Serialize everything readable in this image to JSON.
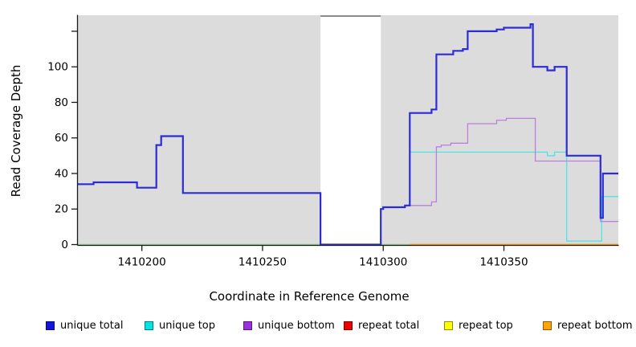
{
  "chart_data": {
    "type": "line",
    "subtype": "step-after",
    "title": "",
    "xlabel": "Coordinate in Reference Genome",
    "ylabel": "Read Coverage Depth",
    "x_axis": {
      "min": 1410173.5,
      "max": 1410397.4,
      "ticks": [
        1410200,
        1410250,
        1410300,
        1410350
      ],
      "tick_labels": [
        "1410200",
        "1410250",
        "1410300",
        "1410350"
      ]
    },
    "y_axis": {
      "min": 0,
      "max": 129,
      "ticks": [
        0,
        20,
        40,
        60,
        80,
        100,
        120
      ],
      "tick_labels": [
        "0",
        "20",
        "40",
        "60",
        "80",
        "100",
        ""
      ]
    },
    "grid": "off",
    "panel_bg": "#dcdcdc",
    "gap_region": {
      "from": 1410274,
      "to": 1410299,
      "fill": "#ffffff",
      "top_border": "#8c8c8c"
    },
    "series": [
      {
        "name": "baseline-green",
        "color": "#8fd08f",
        "width": 1.5,
        "points": [
          [
            1410173.5,
            0
          ],
          [
            1410311,
            0
          ]
        ]
      },
      {
        "name": "repeat bottom",
        "color": "#ff9d00",
        "width": 1.8,
        "points": [
          [
            1410311,
            0
          ],
          [
            1410397.4,
            0
          ]
        ]
      },
      {
        "name": "unique top",
        "color": "#4de4e4",
        "width": 1.3,
        "points": [
          [
            1410311,
            52
          ],
          [
            1410368,
            50
          ],
          [
            1410371,
            52
          ],
          [
            1410376,
            2
          ],
          [
            1410390.5,
            27
          ],
          [
            1410397.4,
            27
          ]
        ]
      },
      {
        "name": "unique bottom",
        "color": "#bb80dd",
        "width": 1.3,
        "points": [
          [
            1410299,
            20
          ],
          [
            1410300,
            21
          ],
          [
            1410309,
            22
          ],
          [
            1410320,
            24
          ],
          [
            1410322,
            55
          ],
          [
            1410324,
            56
          ],
          [
            1410328,
            57
          ],
          [
            1410335,
            68
          ],
          [
            1410347,
            70
          ],
          [
            1410351,
            71
          ],
          [
            1410363,
            47
          ],
          [
            1410390,
            13
          ],
          [
            1410397.4,
            13
          ]
        ]
      },
      {
        "name": "unique total",
        "color": "#2c2cd6",
        "width": 2.2,
        "points": [
          [
            1410173.5,
            34
          ],
          [
            1410180,
            35
          ],
          [
            1410198,
            32
          ],
          [
            1410206,
            56
          ],
          [
            1410208,
            61
          ],
          [
            1410217,
            29
          ],
          [
            1410274,
            0
          ],
          [
            1410299,
            20
          ],
          [
            1410300,
            21
          ],
          [
            1410309,
            22
          ],
          [
            1410311,
            74
          ],
          [
            1410320,
            76
          ],
          [
            1410322,
            107
          ],
          [
            1410329,
            109
          ],
          [
            1410333,
            110
          ],
          [
            1410335,
            120
          ],
          [
            1410347,
            121
          ],
          [
            1410350,
            122
          ],
          [
            1410361,
            124
          ],
          [
            1410362,
            100
          ],
          [
            1410368,
            98
          ],
          [
            1410371,
            100
          ],
          [
            1410376,
            50
          ],
          [
            1410390,
            15
          ],
          [
            1410391,
            40
          ],
          [
            1410397.4,
            40
          ]
        ]
      }
    ],
    "legend": [
      {
        "label": "unique total",
        "color": "#1414e0"
      },
      {
        "label": "unique top",
        "color": "#00e5e5"
      },
      {
        "label": "unique bottom",
        "color": "#9b30e0"
      },
      {
        "label": "repeat total",
        "color": "#ee0000"
      },
      {
        "label": "repeat top",
        "color": "#ffff00"
      },
      {
        "label": "repeat bottom",
        "color": "#ffa500"
      }
    ],
    "legend_position": "bottom"
  }
}
